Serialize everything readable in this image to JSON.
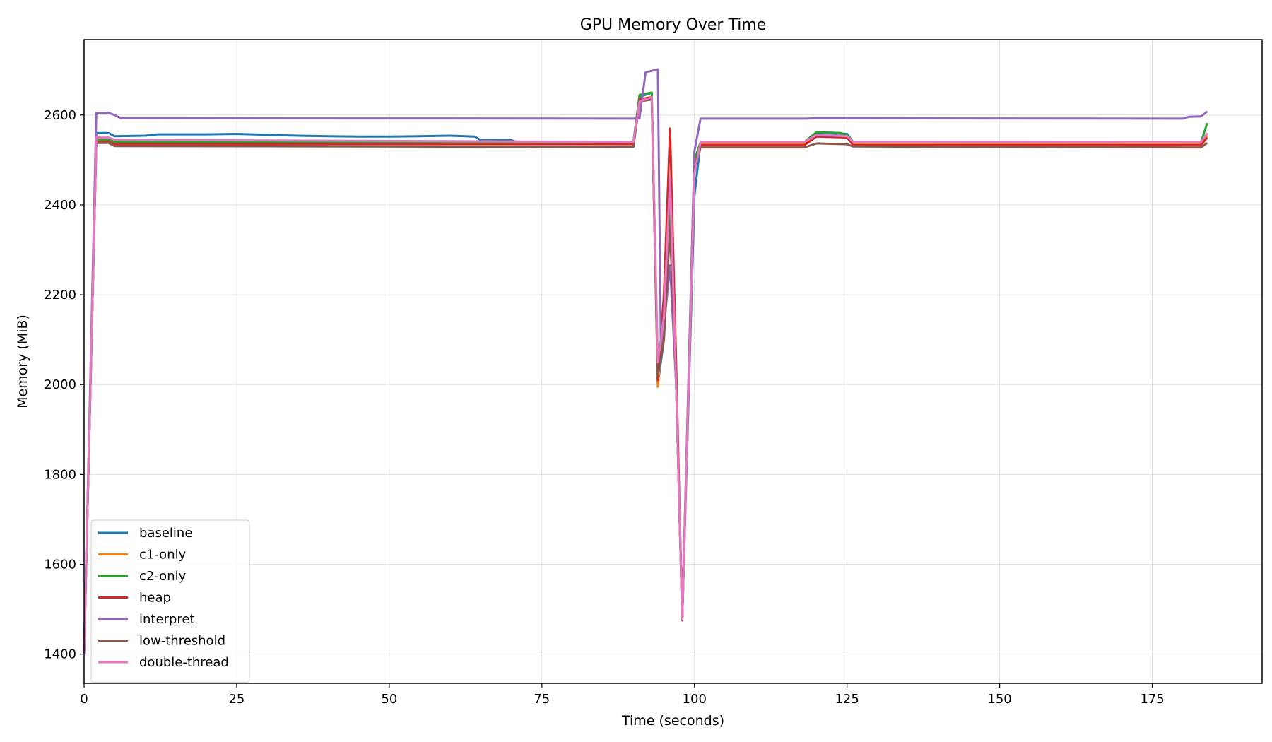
{
  "chart_data": {
    "type": "line",
    "title": "GPU Memory Over Time",
    "xlabel": "Time (seconds)",
    "ylabel": "Memory (MiB)",
    "xlim": [
      0,
      193
    ],
    "ylim": [
      1335,
      2768
    ],
    "xticks": [
      0,
      25,
      50,
      75,
      100,
      125,
      150,
      175
    ],
    "yticks": [
      1400,
      1600,
      1800,
      2000,
      2200,
      2400,
      2600
    ],
    "grid": true,
    "legend_position": "lower-left",
    "series": [
      {
        "name": "baseline",
        "color": "#1f77b4",
        "points": [
          [
            0,
            1400
          ],
          [
            2,
            2560
          ],
          [
            4,
            2560
          ],
          [
            5,
            2553
          ],
          [
            10,
            2554
          ],
          [
            12,
            2557
          ],
          [
            20,
            2557
          ],
          [
            25,
            2558
          ],
          [
            30,
            2556
          ],
          [
            35,
            2554
          ],
          [
            40,
            2553
          ],
          [
            45,
            2552
          ],
          [
            50,
            2552
          ],
          [
            55,
            2553
          ],
          [
            60,
            2554
          ],
          [
            64,
            2552
          ],
          [
            65,
            2544
          ],
          [
            70,
            2544
          ],
          [
            71,
            2540
          ],
          [
            90,
            2540
          ],
          [
            91,
            2640
          ],
          [
            93,
            2650
          ],
          [
            94,
            2000
          ],
          [
            95,
            2100
          ],
          [
            96,
            2350
          ],
          [
            97,
            2000
          ],
          [
            98,
            1480
          ],
          [
            100,
            2420
          ],
          [
            101,
            2540
          ],
          [
            118,
            2540
          ],
          [
            120,
            2560
          ],
          [
            125,
            2558
          ],
          [
            126,
            2540
          ],
          [
            140,
            2535
          ],
          [
            145,
            2535
          ],
          [
            150,
            2535
          ],
          [
            175,
            2535
          ],
          [
            183,
            2535
          ],
          [
            184,
            2560
          ]
        ]
      },
      {
        "name": "c1-only",
        "color": "#ff7f0e",
        "points": [
          [
            0,
            1400
          ],
          [
            2,
            2545
          ],
          [
            4,
            2545
          ],
          [
            5,
            2540
          ],
          [
            90,
            2540
          ],
          [
            91,
            2635
          ],
          [
            93,
            2640
          ],
          [
            94,
            1995
          ],
          [
            95,
            2150
          ],
          [
            96,
            2400
          ],
          [
            97,
            2000
          ],
          [
            98,
            1480
          ],
          [
            100,
            2500
          ],
          [
            101,
            2535
          ],
          [
            118,
            2535
          ],
          [
            120,
            2555
          ],
          [
            125,
            2553
          ],
          [
            126,
            2535
          ],
          [
            183,
            2535
          ],
          [
            184,
            2555
          ]
        ]
      },
      {
        "name": "c2-only",
        "color": "#2ca02c",
        "points": [
          [
            0,
            1400
          ],
          [
            2,
            2545
          ],
          [
            4,
            2545
          ],
          [
            5,
            2540
          ],
          [
            90,
            2540
          ],
          [
            91,
            2645
          ],
          [
            93,
            2650
          ],
          [
            94,
            2030
          ],
          [
            95,
            2150
          ],
          [
            96,
            2400
          ],
          [
            97,
            2000
          ],
          [
            98,
            1480
          ],
          [
            100,
            2500
          ],
          [
            101,
            2540
          ],
          [
            118,
            2540
          ],
          [
            120,
            2562
          ],
          [
            124,
            2560
          ],
          [
            125,
            2555
          ],
          [
            126,
            2540
          ],
          [
            183,
            2540
          ],
          [
            184,
            2582
          ]
        ]
      },
      {
        "name": "heap",
        "color": "#d62728",
        "points": [
          [
            0,
            1400
          ],
          [
            2,
            2540
          ],
          [
            4,
            2540
          ],
          [
            5,
            2535
          ],
          [
            90,
            2535
          ],
          [
            91,
            2635
          ],
          [
            93,
            2640
          ],
          [
            94,
            2010
          ],
          [
            95,
            2200
          ],
          [
            96,
            2570
          ],
          [
            97,
            2050
          ],
          [
            98,
            1478
          ],
          [
            100,
            2480
          ],
          [
            101,
            2533
          ],
          [
            118,
            2533
          ],
          [
            120,
            2552
          ],
          [
            125,
            2550
          ],
          [
            126,
            2533
          ],
          [
            183,
            2533
          ],
          [
            184,
            2550
          ]
        ]
      },
      {
        "name": "interpret",
        "color": "#9467bd",
        "points": [
          [
            0,
            1400
          ],
          [
            2,
            2605
          ],
          [
            4,
            2605
          ],
          [
            5,
            2600
          ],
          [
            6,
            2593
          ],
          [
            90,
            2592
          ],
          [
            91,
            2593
          ],
          [
            92,
            2695
          ],
          [
            94,
            2702
          ],
          [
            94.5,
            2090
          ],
          [
            95,
            2130
          ],
          [
            96,
            2265
          ],
          [
            97,
            2000
          ],
          [
            98,
            1480
          ],
          [
            100,
            2520
          ],
          [
            101,
            2592
          ],
          [
            118,
            2592
          ],
          [
            120,
            2593
          ],
          [
            180,
            2592
          ],
          [
            181,
            2596
          ],
          [
            183,
            2597
          ],
          [
            184,
            2608
          ]
        ]
      },
      {
        "name": "low-threshold",
        "color": "#8c564b",
        "points": [
          [
            0,
            1400
          ],
          [
            2,
            2538
          ],
          [
            4,
            2538
          ],
          [
            5,
            2531
          ],
          [
            90,
            2529
          ],
          [
            91,
            2630
          ],
          [
            93,
            2635
          ],
          [
            94,
            2020
          ],
          [
            95,
            2100
          ],
          [
            96,
            2350
          ],
          [
            97,
            2000
          ],
          [
            98,
            1475
          ],
          [
            100,
            2480
          ],
          [
            101,
            2528
          ],
          [
            118,
            2528
          ],
          [
            120,
            2537
          ],
          [
            125,
            2535
          ],
          [
            126,
            2530
          ],
          [
            180,
            2528
          ],
          [
            183,
            2528
          ],
          [
            184,
            2538
          ]
        ]
      },
      {
        "name": "double-thread",
        "color": "#e377c2",
        "points": [
          [
            0,
            1400
          ],
          [
            2,
            2550
          ],
          [
            4,
            2550
          ],
          [
            5,
            2545
          ],
          [
            90,
            2540
          ],
          [
            91,
            2630
          ],
          [
            93,
            2640
          ],
          [
            94,
            2050
          ],
          [
            95,
            2150
          ],
          [
            96,
            2460
          ],
          [
            97,
            2000
          ],
          [
            98,
            1478
          ],
          [
            100,
            2470
          ],
          [
            101,
            2540
          ],
          [
            118,
            2540
          ],
          [
            120,
            2556
          ],
          [
            125,
            2553
          ],
          [
            126,
            2540
          ],
          [
            183,
            2540
          ],
          [
            184,
            2560
          ]
        ]
      }
    ]
  }
}
